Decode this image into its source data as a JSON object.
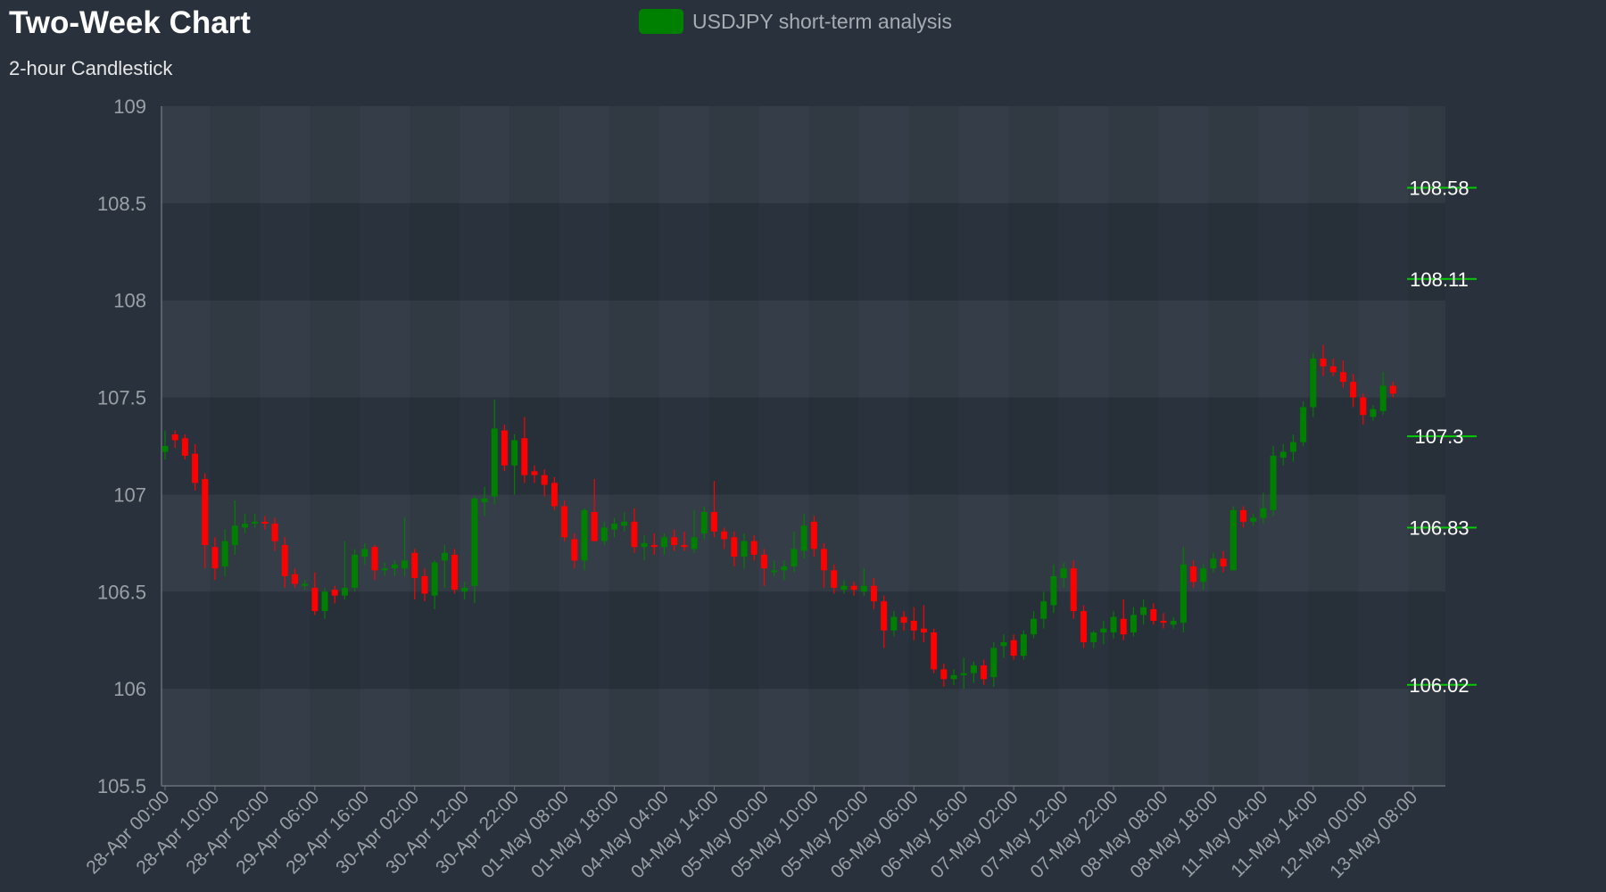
{
  "colors": {
    "background": "#29313c",
    "plot_band_dark": "#2a323d",
    "plot_band_light": "#353d48",
    "up": "#008000",
    "down": "#ff0000",
    "level_line": "#00cc00",
    "axis_text": "#9aa0a6",
    "axis_line": "#6b7078"
  },
  "chart_data": {
    "type": "candlestick",
    "title": "Two-Week Chart",
    "subtitle": "2-hour Candlestick",
    "legend": [
      "USDJPY short-term analysis"
    ],
    "legend_position": "top-center",
    "ylim": [
      105.5,
      109
    ],
    "y_ticks": [
      105.5,
      106,
      106.5,
      107,
      107.5,
      108,
      108.5,
      109
    ],
    "x_tick_labels": [
      "28-Apr 00:00",
      "28-Apr 10:00",
      "28-Apr 20:00",
      "29-Apr 06:00",
      "29-Apr 16:00",
      "30-Apr 02:00",
      "30-Apr 12:00",
      "30-Apr 22:00",
      "01-May 08:00",
      "01-May 18:00",
      "04-May 04:00",
      "04-May 14:00",
      "05-May 00:00",
      "05-May 10:00",
      "05-May 20:00",
      "06-May 06:00",
      "06-May 16:00",
      "07-May 02:00",
      "07-May 12:00",
      "07-May 22:00",
      "08-May 08:00",
      "08-May 18:00",
      "11-May 04:00",
      "11-May 14:00",
      "12-May 00:00",
      "13-May 08:00"
    ],
    "bars_per_tick": 5,
    "level_lines": [
      108.58,
      108.11,
      107.3,
      106.83,
      106.02
    ],
    "level_labels": [
      "108.58",
      "108.11",
      "107.3",
      "106.83",
      "106.02"
    ],
    "series": [
      {
        "name": "USDJPY short-term analysis",
        "ohlc": [
          [
            107.22,
            107.33,
            107.18,
            107.25
          ],
          [
            107.31,
            107.33,
            107.24,
            107.28
          ],
          [
            107.29,
            107.31,
            107.18,
            107.2
          ],
          [
            107.21,
            107.26,
            107.02,
            107.06
          ],
          [
            107.08,
            107.11,
            106.62,
            106.74
          ],
          [
            106.73,
            106.78,
            106.56,
            106.62
          ],
          [
            106.63,
            106.82,
            106.58,
            106.76
          ],
          [
            106.74,
            106.97,
            106.69,
            106.84
          ],
          [
            106.83,
            106.9,
            106.8,
            106.85
          ],
          [
            106.85,
            106.9,
            106.83,
            106.86
          ],
          [
            106.86,
            106.89,
            106.82,
            106.85
          ],
          [
            106.85,
            106.88,
            106.71,
            106.76
          ],
          [
            106.74,
            106.78,
            106.52,
            106.58
          ],
          [
            106.59,
            106.62,
            106.52,
            106.54
          ],
          [
            106.53,
            106.56,
            106.51,
            106.54
          ],
          [
            106.52,
            106.6,
            106.38,
            106.4
          ],
          [
            106.4,
            106.52,
            106.36,
            106.5
          ],
          [
            106.51,
            106.53,
            106.44,
            106.48
          ],
          [
            106.48,
            106.76,
            106.46,
            106.52
          ],
          [
            106.52,
            106.72,
            106.5,
            106.69
          ],
          [
            106.68,
            106.75,
            106.64,
            106.72
          ],
          [
            106.73,
            106.74,
            106.56,
            106.61
          ],
          [
            106.61,
            106.65,
            106.58,
            106.62
          ],
          [
            106.62,
            106.66,
            106.58,
            106.64
          ],
          [
            106.62,
            106.88,
            106.58,
            106.66
          ],
          [
            106.7,
            106.72,
            106.46,
            106.57
          ],
          [
            106.58,
            106.62,
            106.45,
            106.49
          ],
          [
            106.48,
            106.66,
            106.41,
            106.65
          ],
          [
            106.66,
            106.74,
            106.52,
            106.7
          ],
          [
            106.69,
            106.72,
            106.49,
            106.51
          ],
          [
            106.5,
            106.55,
            106.46,
            106.52
          ],
          [
            106.53,
            106.99,
            106.44,
            106.98
          ],
          [
            106.96,
            107.04,
            106.89,
            106.98
          ],
          [
            106.99,
            107.49,
            106.95,
            107.34
          ],
          [
            107.33,
            107.36,
            107.12,
            107.15
          ],
          [
            107.15,
            107.31,
            107.0,
            107.28
          ],
          [
            107.29,
            107.4,
            107.06,
            107.1
          ],
          [
            107.12,
            107.15,
            107.06,
            107.1
          ],
          [
            107.1,
            107.13,
            106.99,
            107.05
          ],
          [
            107.06,
            107.09,
            106.92,
            106.94
          ],
          [
            106.94,
            106.97,
            106.76,
            106.78
          ],
          [
            106.77,
            106.8,
            106.62,
            106.66
          ],
          [
            106.66,
            106.93,
            106.61,
            106.92
          ],
          [
            106.91,
            107.08,
            106.76,
            106.76
          ],
          [
            106.76,
            106.86,
            106.74,
            106.83
          ],
          [
            106.82,
            106.88,
            106.78,
            106.85
          ],
          [
            106.84,
            106.91,
            106.81,
            106.86
          ],
          [
            106.86,
            106.93,
            106.7,
            106.73
          ],
          [
            106.73,
            106.79,
            106.66,
            106.75
          ],
          [
            106.74,
            106.8,
            106.69,
            106.73
          ],
          [
            106.73,
            106.8,
            106.69,
            106.78
          ],
          [
            106.78,
            106.82,
            106.71,
            106.74
          ],
          [
            106.74,
            106.81,
            106.71,
            106.73
          ],
          [
            106.72,
            106.92,
            106.7,
            106.78
          ],
          [
            106.8,
            106.94,
            106.77,
            106.91
          ],
          [
            106.91,
            107.07,
            106.78,
            106.81
          ],
          [
            106.81,
            106.83,
            106.72,
            106.77
          ],
          [
            106.78,
            106.81,
            106.63,
            106.68
          ],
          [
            106.68,
            106.8,
            106.62,
            106.76
          ],
          [
            106.76,
            106.79,
            106.66,
            106.69
          ],
          [
            106.69,
            106.72,
            106.53,
            106.62
          ],
          [
            106.61,
            106.66,
            106.58,
            106.61
          ],
          [
            106.61,
            106.66,
            106.56,
            106.63
          ],
          [
            106.63,
            106.81,
            106.6,
            106.72
          ],
          [
            106.71,
            106.9,
            106.67,
            106.84
          ],
          [
            106.86,
            106.89,
            106.68,
            106.72
          ],
          [
            106.72,
            106.75,
            106.52,
            106.61
          ],
          [
            106.61,
            106.64,
            106.49,
            106.52
          ],
          [
            106.51,
            106.56,
            106.49,
            106.53
          ],
          [
            106.53,
            106.55,
            106.48,
            106.51
          ],
          [
            106.5,
            106.62,
            106.48,
            106.53
          ],
          [
            106.53,
            106.57,
            106.41,
            106.45
          ],
          [
            106.45,
            106.48,
            106.21,
            106.3
          ],
          [
            106.3,
            106.4,
            106.27,
            106.37
          ],
          [
            106.37,
            106.4,
            106.3,
            106.34
          ],
          [
            106.35,
            106.42,
            106.25,
            106.3
          ],
          [
            106.31,
            106.43,
            106.24,
            106.29
          ],
          [
            106.29,
            106.31,
            106.08,
            106.1
          ],
          [
            106.1,
            106.13,
            106.01,
            106.05
          ],
          [
            106.05,
            106.1,
            106.02,
            106.07
          ],
          [
            106.07,
            106.16,
            106.0,
            106.08
          ],
          [
            106.08,
            106.14,
            106.03,
            106.12
          ],
          [
            106.12,
            106.15,
            106.02,
            106.05
          ],
          [
            106.06,
            106.24,
            106.01,
            106.21
          ],
          [
            106.22,
            106.28,
            106.16,
            106.24
          ],
          [
            106.25,
            106.28,
            106.15,
            106.17
          ],
          [
            106.17,
            106.3,
            106.15,
            106.28
          ],
          [
            106.28,
            106.4,
            106.26,
            106.36
          ],
          [
            106.36,
            106.5,
            106.31,
            106.45
          ],
          [
            106.43,
            106.64,
            106.39,
            106.58
          ],
          [
            106.57,
            106.65,
            106.52,
            106.62
          ],
          [
            106.62,
            106.66,
            106.36,
            106.4
          ],
          [
            106.4,
            106.43,
            106.21,
            106.24
          ],
          [
            106.24,
            106.3,
            106.21,
            106.29
          ],
          [
            106.29,
            106.35,
            106.23,
            106.31
          ],
          [
            106.29,
            106.4,
            106.26,
            106.37
          ],
          [
            106.36,
            106.46,
            106.25,
            106.28
          ],
          [
            106.29,
            106.42,
            106.27,
            106.38
          ],
          [
            106.38,
            106.46,
            106.33,
            106.42
          ],
          [
            106.41,
            106.44,
            106.33,
            106.35
          ],
          [
            106.35,
            106.39,
            106.31,
            106.34
          ],
          [
            106.33,
            106.37,
            106.31,
            106.35
          ],
          [
            106.34,
            106.73,
            106.29,
            106.64
          ],
          [
            106.63,
            106.66,
            106.52,
            106.55
          ],
          [
            106.55,
            106.64,
            106.51,
            106.62
          ],
          [
            106.62,
            106.7,
            106.6,
            106.67
          ],
          [
            106.67,
            106.71,
            106.6,
            106.63
          ],
          [
            106.61,
            106.94,
            106.61,
            106.92
          ],
          [
            106.92,
            106.94,
            106.83,
            106.86
          ],
          [
            106.86,
            106.9,
            106.84,
            106.88
          ],
          [
            106.88,
            107.01,
            106.85,
            106.93
          ],
          [
            106.92,
            107.25,
            106.89,
            107.2
          ],
          [
            107.19,
            107.26,
            107.15,
            107.22
          ],
          [
            107.22,
            107.31,
            107.17,
            107.27
          ],
          [
            107.27,
            107.48,
            107.25,
            107.45
          ],
          [
            107.45,
            107.73,
            107.4,
            107.7
          ],
          [
            107.7,
            107.77,
            107.61,
            107.66
          ],
          [
            107.66,
            107.7,
            107.61,
            107.63
          ],
          [
            107.63,
            107.69,
            107.55,
            107.58
          ],
          [
            107.58,
            107.62,
            107.45,
            107.5
          ],
          [
            107.5,
            107.52,
            107.36,
            107.41
          ],
          [
            107.4,
            107.46,
            107.38,
            107.44
          ],
          [
            107.43,
            107.63,
            107.41,
            107.56
          ],
          [
            107.56,
            107.58,
            107.5,
            107.52
          ]
        ]
      }
    ]
  }
}
